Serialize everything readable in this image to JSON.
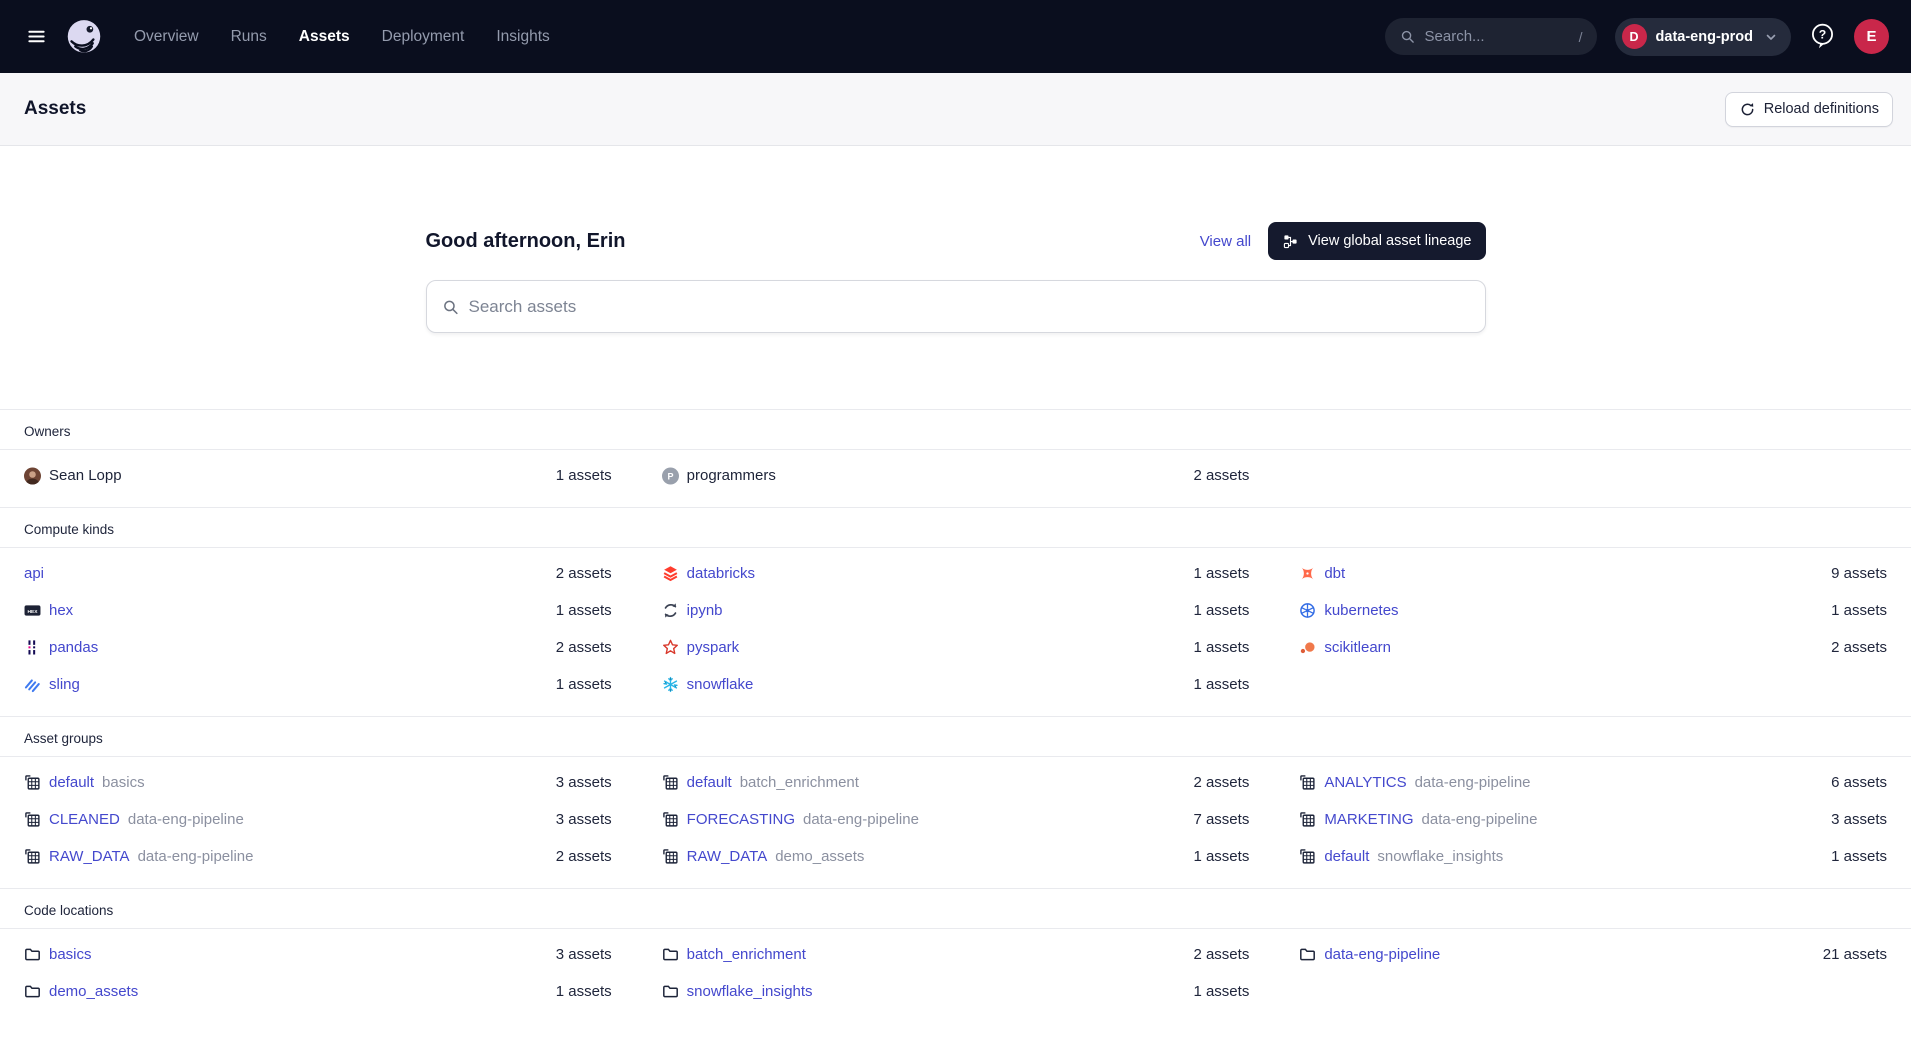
{
  "topnav": {
    "nav_items": [
      {
        "label": "Overview",
        "active": false
      },
      {
        "label": "Runs",
        "active": false
      },
      {
        "label": "Assets",
        "active": true
      },
      {
        "label": "Deployment",
        "active": false
      },
      {
        "label": "Insights",
        "active": false
      }
    ],
    "search_placeholder": "Search...",
    "search_shortcut": "/",
    "deployment": {
      "initial": "D",
      "name": "data-eng-prod"
    },
    "user_avatar_initial": "E"
  },
  "header": {
    "title": "Assets",
    "reload_button_label": "Reload definitions"
  },
  "hero": {
    "greeting": "Good afternoon, Erin",
    "view_all_label": "View all",
    "lineage_button_label": "View global asset lineage",
    "search_placeholder": "Search assets"
  },
  "sections": [
    {
      "title": "Owners",
      "link": false,
      "items": [
        {
          "icon": "user-photo-avatar",
          "label": "Sean Lopp",
          "count": "1 assets"
        },
        {
          "icon": "team-avatar",
          "label": "programmers",
          "count": "2 assets"
        }
      ]
    },
    {
      "title": "Compute kinds",
      "link": true,
      "items": [
        {
          "icon": null,
          "label": "api",
          "count": "2 assets"
        },
        {
          "icon": "databricks",
          "label": "databricks",
          "count": "1 assets"
        },
        {
          "icon": "dbt",
          "label": "dbt",
          "count": "9 assets"
        },
        {
          "icon": "hex",
          "label": "hex",
          "count": "1 assets"
        },
        {
          "icon": "ipynb",
          "label": "ipynb",
          "count": "1 assets"
        },
        {
          "icon": "kubernetes",
          "label": "kubernetes",
          "count": "1 assets"
        },
        {
          "icon": "pandas",
          "label": "pandas",
          "count": "2 assets"
        },
        {
          "icon": "pyspark",
          "label": "pyspark",
          "count": "1 assets"
        },
        {
          "icon": "scikitlearn",
          "label": "scikitlearn",
          "count": "2 assets"
        },
        {
          "icon": "sling",
          "label": "sling",
          "count": "1 assets"
        },
        {
          "icon": "snowflake",
          "label": "snowflake",
          "count": "1 assets"
        }
      ]
    },
    {
      "title": "Asset groups",
      "link": true,
      "items": [
        {
          "icon": "asset-group",
          "label": "default",
          "label2": "basics",
          "count": "3 assets"
        },
        {
          "icon": "asset-group",
          "label": "default",
          "label2": "batch_enrichment",
          "count": "2 assets"
        },
        {
          "icon": "asset-group",
          "label": "ANALYTICS",
          "label2": "data-eng-pipeline",
          "count": "6 assets"
        },
        {
          "icon": "asset-group",
          "label": "CLEANED",
          "label2": "data-eng-pipeline",
          "count": "3 assets"
        },
        {
          "icon": "asset-group",
          "label": "FORECASTING",
          "label2": "data-eng-pipeline",
          "count": "7 assets"
        },
        {
          "icon": "asset-group",
          "label": "MARKETING",
          "label2": "data-eng-pipeline",
          "count": "3 assets"
        },
        {
          "icon": "asset-group",
          "label": "RAW_DATA",
          "label2": "data-eng-pipeline",
          "count": "2 assets"
        },
        {
          "icon": "asset-group",
          "label": "RAW_DATA",
          "label2": "demo_assets",
          "count": "1 assets"
        },
        {
          "icon": "asset-group",
          "label": "default",
          "label2": "snowflake_insights",
          "count": "1 assets"
        }
      ]
    },
    {
      "title": "Code locations",
      "link": true,
      "items": [
        {
          "icon": "folder",
          "label": "basics",
          "count": "3 assets"
        },
        {
          "icon": "folder",
          "label": "batch_enrichment",
          "count": "2 assets"
        },
        {
          "icon": "folder",
          "label": "data-eng-pipeline",
          "count": "21 assets"
        },
        {
          "icon": "folder",
          "label": "demo_assets",
          "count": "1 assets"
        },
        {
          "icon": "folder",
          "label": "snowflake_insights",
          "count": "1 assets"
        }
      ]
    }
  ],
  "colors": {
    "nav_background": "#0a0e1e",
    "link": "#4448cd",
    "badge_red": "#c9274a",
    "dark_button": "#151a2e",
    "header_background": "#f7f7f9",
    "divider": "#e9eaee"
  }
}
